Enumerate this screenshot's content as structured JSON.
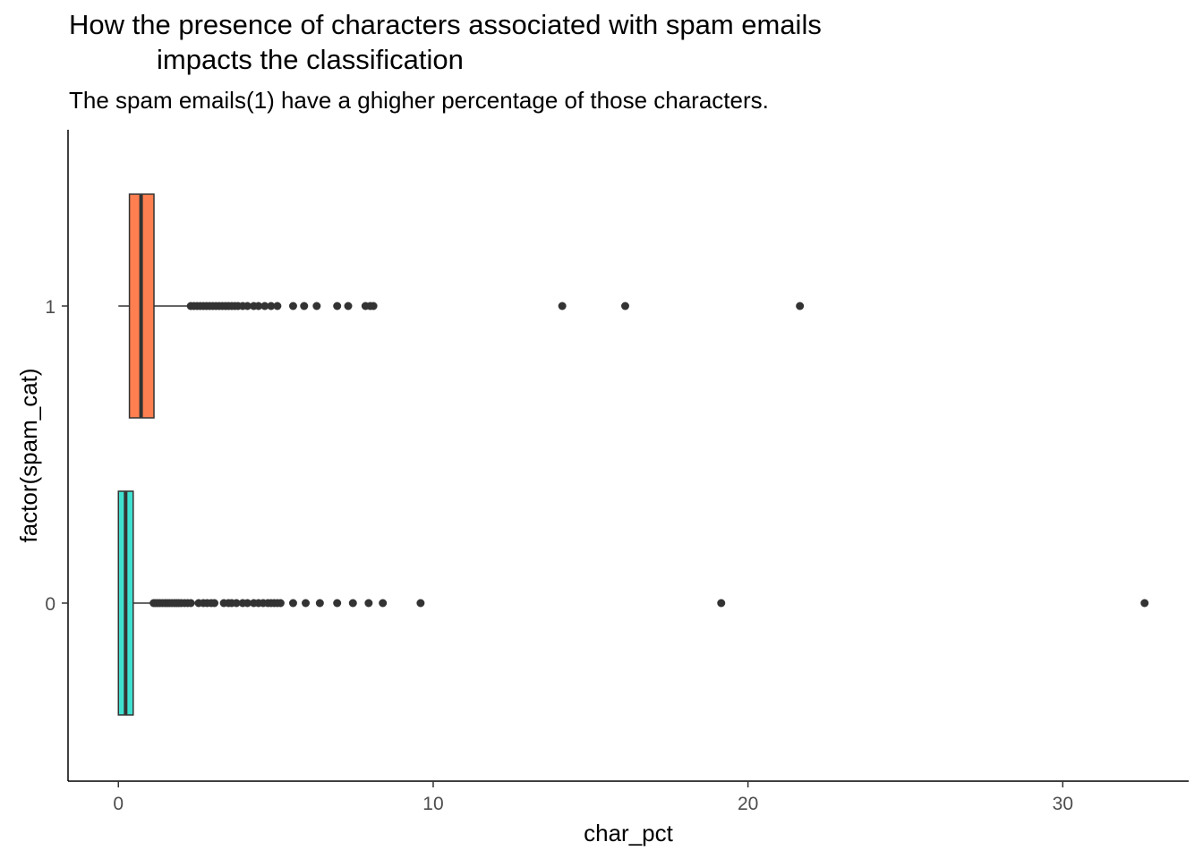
{
  "chart_data": {
    "type": "boxplot",
    "orientation": "horizontal",
    "title_lines": [
      "How the presence of characters associated with spam emails",
      "impacts the classification"
    ],
    "subtitle": "The spam emails(1) have a ghigher percentage of those characters.",
    "xlabel": "char_pct",
    "ylabel": "factor(spam_cat)",
    "xlim": [
      -1.6,
      34.0
    ],
    "x_ticks": [
      0,
      10,
      20,
      30
    ],
    "categories": [
      "0",
      "1"
    ],
    "grid": false,
    "legend": "none",
    "series": [
      {
        "name": "0",
        "color": "#40E0D0",
        "q1": 0.0,
        "median": 0.23,
        "q3": 0.47,
        "whisker_low": 0.0,
        "whisker_high": 1.07,
        "outliers": [
          1.12,
          1.18,
          1.25,
          1.32,
          1.4,
          1.48,
          1.55,
          1.62,
          1.7,
          1.78,
          1.85,
          1.92,
          2.0,
          2.1,
          2.2,
          2.3,
          2.55,
          2.7,
          2.82,
          2.95,
          3.05,
          3.35,
          3.5,
          3.6,
          3.75,
          3.95,
          4.1,
          4.3,
          4.45,
          4.6,
          4.75,
          4.85,
          4.95,
          5.05,
          5.15,
          5.55,
          5.95,
          6.4,
          6.95,
          7.45,
          7.95,
          8.4,
          9.6,
          19.15,
          32.6
        ]
      },
      {
        "name": "1",
        "color": "#FF7F50",
        "q1": 0.35,
        "median": 0.72,
        "q3": 1.13,
        "whisker_low": 0.0,
        "whisker_high": 2.22,
        "outliers": [
          2.3,
          2.4,
          2.5,
          2.6,
          2.7,
          2.8,
          2.9,
          3.0,
          3.1,
          3.2,
          3.3,
          3.4,
          3.5,
          3.6,
          3.7,
          3.8,
          3.95,
          4.1,
          4.3,
          4.45,
          4.65,
          4.85,
          5.05,
          5.55,
          5.9,
          6.3,
          6.95,
          7.3,
          7.85,
          8.0,
          8.1,
          14.1,
          16.1,
          21.65
        ]
      }
    ]
  }
}
